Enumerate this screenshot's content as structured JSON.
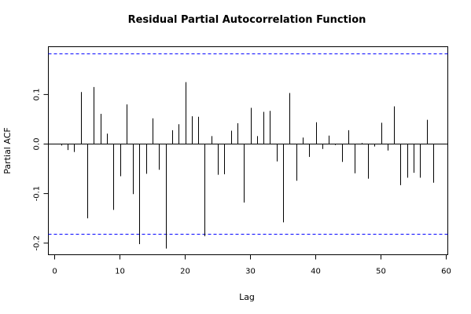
{
  "chart_data": {
    "type": "bar",
    "title": "Residual Partial Autocorrelation Function",
    "xlabel": "Lag",
    "ylabel": "Partial ACF",
    "xlim": [
      0,
      60
    ],
    "ylim": [
      -0.2,
      0.18
    ],
    "x_ticks": [
      0,
      10,
      20,
      30,
      40,
      50,
      60
    ],
    "y_ticks": [
      -0.2,
      -0.1,
      0.0,
      0.1
    ],
    "y_tick_labels": [
      "-0.2",
      "-0.1",
      "0.0",
      "0.1"
    ],
    "confidence_bounds": [
      0.182,
      -0.182
    ],
    "confidence_color": "#0000ff",
    "grid": false,
    "lags": [
      1,
      2,
      3,
      4,
      5,
      6,
      7,
      8,
      9,
      10,
      11,
      12,
      13,
      14,
      15,
      16,
      17,
      18,
      19,
      20,
      21,
      22,
      23,
      24,
      25,
      26,
      27,
      28,
      29,
      30,
      31,
      32,
      33,
      34,
      35,
      36,
      37,
      38,
      39,
      40,
      41,
      42,
      43,
      44,
      45,
      46,
      47,
      48,
      49,
      50,
      51,
      52,
      53,
      54,
      55,
      56,
      57,
      58
    ],
    "values": [
      -0.003,
      -0.012,
      -0.016,
      0.105,
      -0.15,
      0.115,
      0.061,
      0.021,
      -0.133,
      -0.065,
      0.08,
      -0.101,
      -0.202,
      -0.06,
      0.052,
      -0.052,
      -0.211,
      0.028,
      0.04,
      0.125,
      0.056,
      0.055,
      -0.186,
      0.016,
      -0.062,
      -0.061,
      0.027,
      0.042,
      -0.118,
      0.073,
      0.016,
      0.065,
      0.067,
      -0.035,
      -0.158,
      0.103,
      -0.074,
      0.013,
      -0.026,
      0.044,
      -0.01,
      0.017,
      -0.002,
      -0.036,
      0.028,
      -0.059,
      0.002,
      -0.07,
      -0.005,
      0.043,
      -0.013,
      0.076,
      -0.083,
      -0.068,
      -0.058,
      -0.068,
      0.049,
      -0.078
    ]
  }
}
